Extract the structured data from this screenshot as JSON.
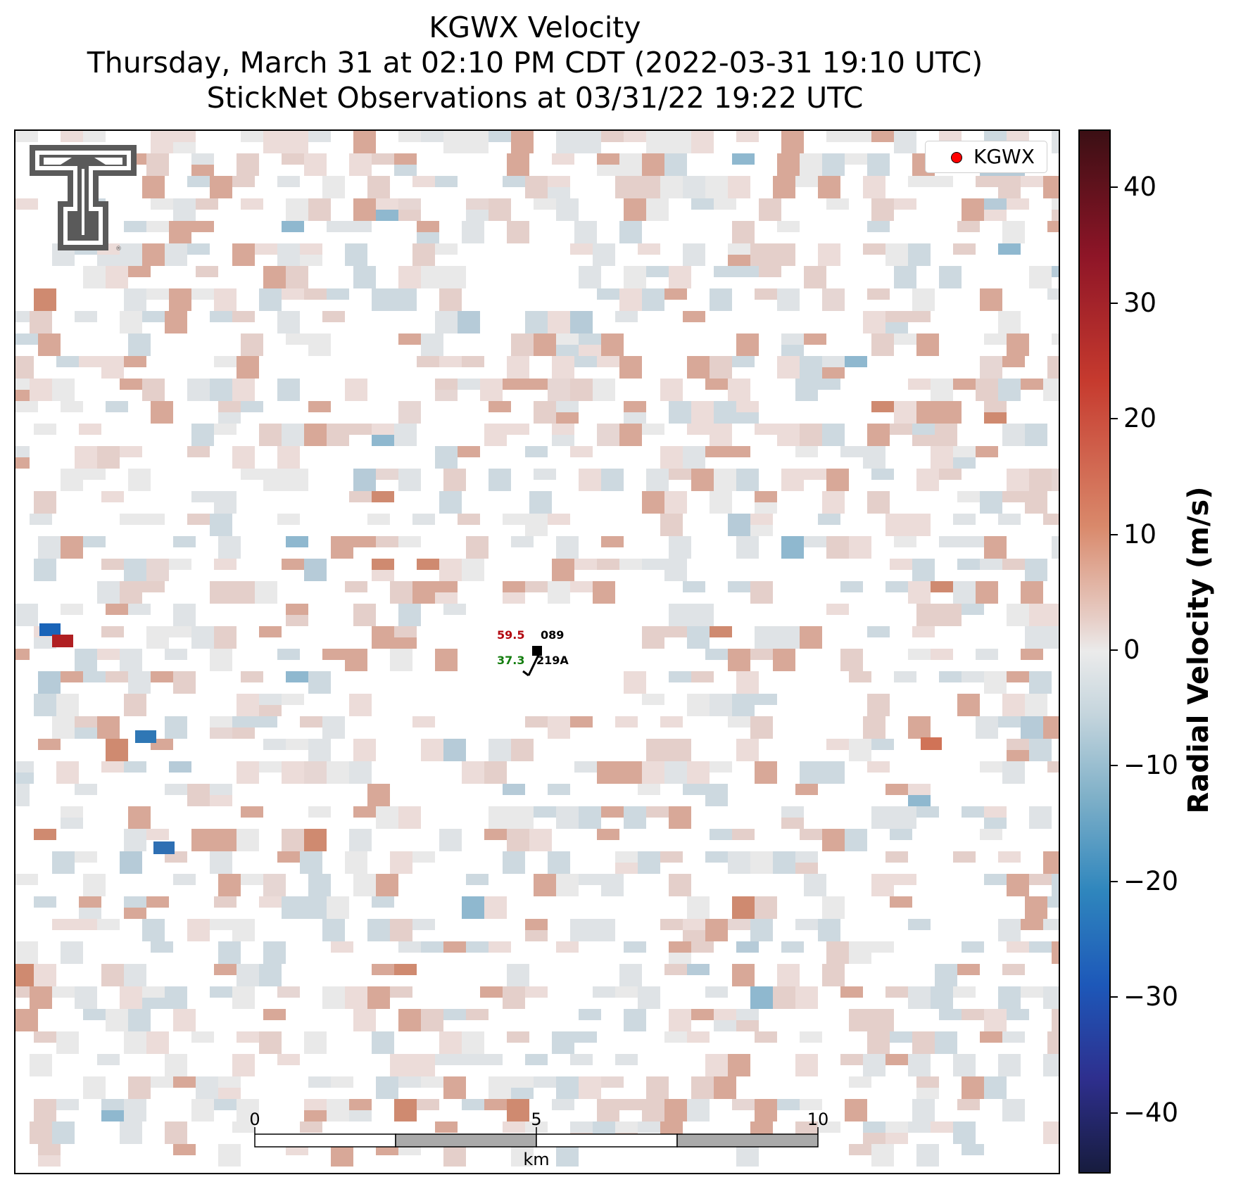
{
  "title": {
    "line1": "KGWX Velocity",
    "line2": "Thursday, March 31 at 02:10 PM CDT (2022-03-31 19:10 UTC)",
    "line3": "StickNet Observations at 03/31/22 19:22 UTC"
  },
  "legend": {
    "label": "KGWX",
    "marker_color": "#ff0000"
  },
  "stations": [
    {
      "id": "089",
      "value": "59.5",
      "value_color": "#b3070f"
    },
    {
      "id": "219A",
      "value": "37.3",
      "value_color": "#137d0e"
    }
  ],
  "scale_bar": {
    "labels": [
      "0",
      "5",
      "10"
    ],
    "unit": "km"
  },
  "colorbar": {
    "label": "Radial Velocity (m/s)",
    "ticks": [
      "40",
      "30",
      "20",
      "10",
      "0",
      "−10",
      "−20",
      "−30",
      "−40"
    ],
    "range": [
      -45,
      45
    ]
  },
  "logo": {
    "name": "Texas Tech double-T"
  }
}
